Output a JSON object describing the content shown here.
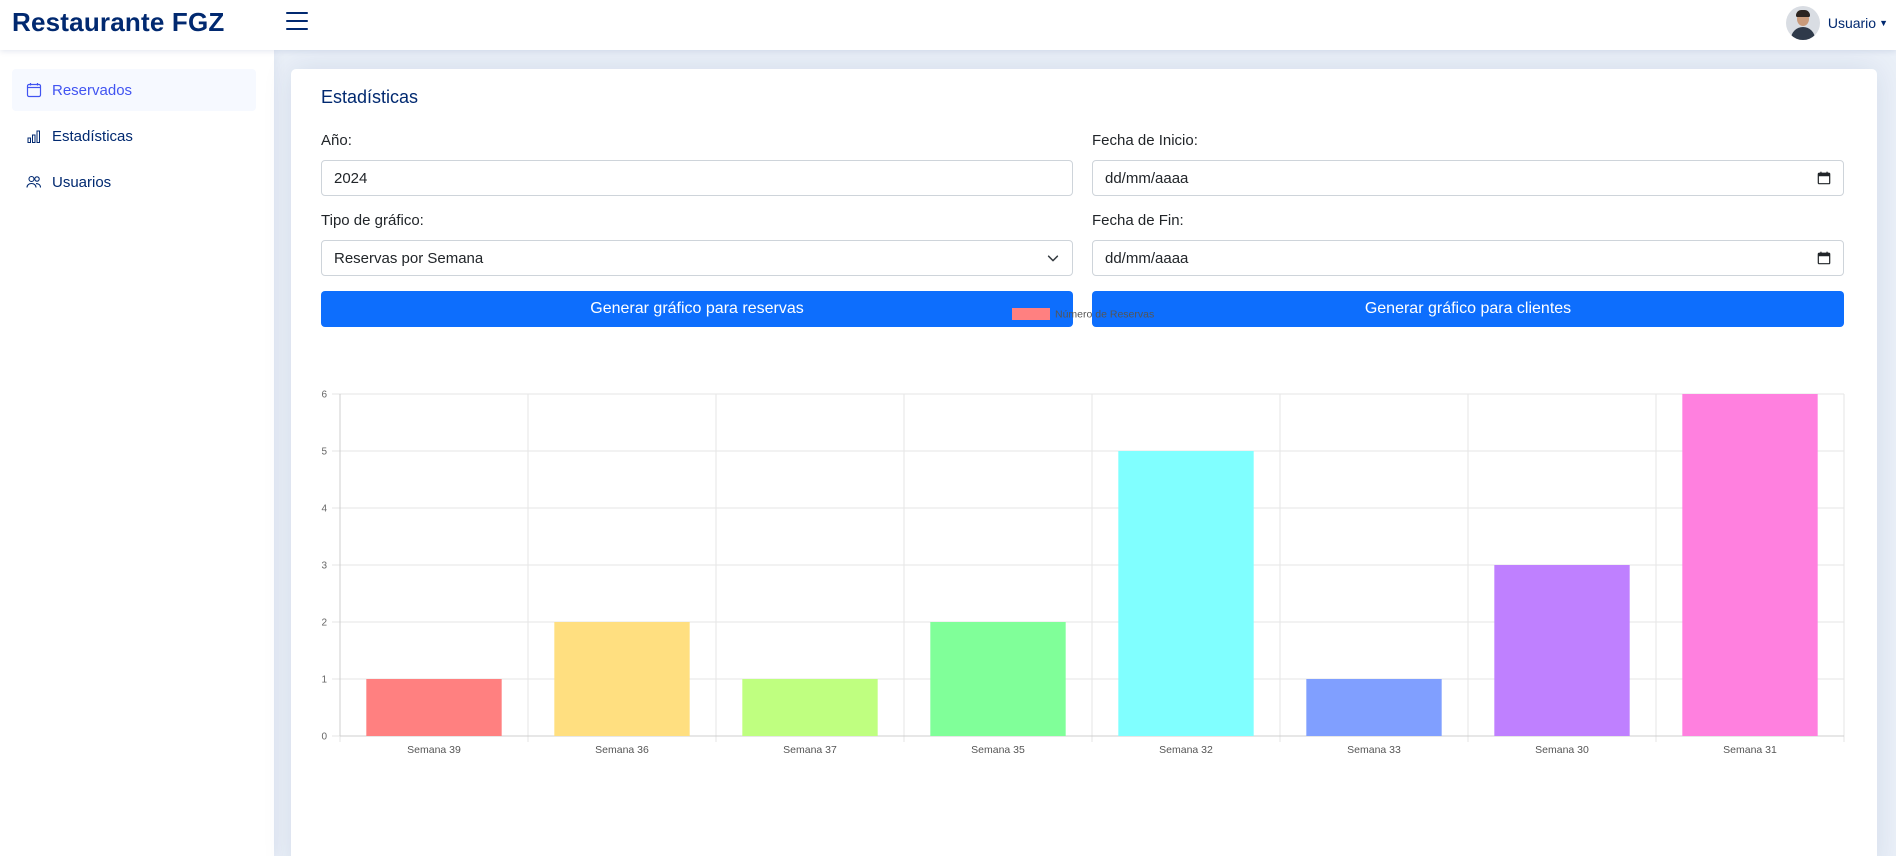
{
  "header": {
    "brand": "Restaurante FGZ",
    "user_name": "Usuario"
  },
  "sidebar": {
    "items": [
      {
        "label": "Reservados",
        "icon": "calendar-icon",
        "active": true
      },
      {
        "label": "Estadísticas",
        "icon": "bar-chart-icon",
        "active": false
      },
      {
        "label": "Usuarios",
        "icon": "users-icon",
        "active": false
      }
    ]
  },
  "card": {
    "title": "Estadísticas",
    "year_label": "Año:",
    "year_value": "2024",
    "start_label": "Fecha de Inicio:",
    "start_placeholder": "dd/mm/aaaa",
    "type_label": "Tipo de gráfico:",
    "type_value": "Reservas por Semana",
    "end_label": "Fecha de Fin:",
    "end_placeholder": "dd/mm/aaaa",
    "btn_reservas": "Generar gráfico para reservas",
    "btn_clientes": "Generar gráfico para clientes"
  },
  "chart_data": {
    "type": "bar",
    "categories": [
      "Semana 39",
      "Semana 36",
      "Semana 37",
      "Semana 35",
      "Semana 32",
      "Semana 33",
      "Semana 30",
      "Semana 31"
    ],
    "series": [
      {
        "name": "Número de Reservas",
        "values": [
          1,
          2,
          1,
          2,
          5,
          1,
          3,
          6
        ]
      }
    ],
    "colors": [
      "#ff8080",
      "#ffdf80",
      "#bfff80",
      "#80ff99",
      "#80ffff",
      "#809fff",
      "#bf80ff",
      "#ff80df"
    ],
    "legend_color": "#ff8080",
    "ylim": [
      0,
      6
    ],
    "yticks": [
      0,
      1,
      2,
      3,
      4,
      5,
      6
    ],
    "grid": true,
    "legend_position": "top"
  }
}
